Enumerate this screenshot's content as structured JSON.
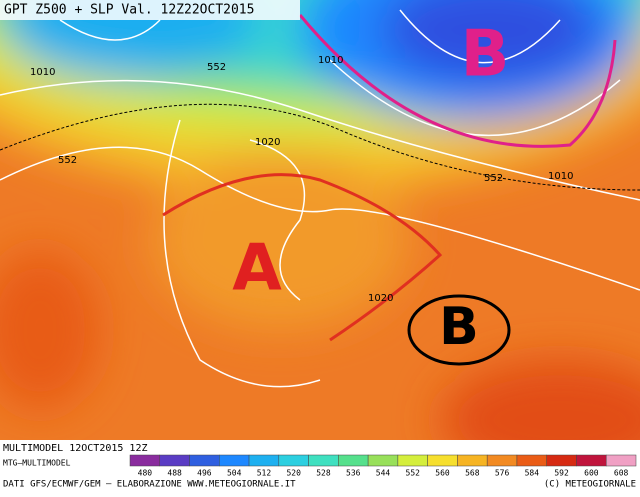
{
  "header": {
    "title": "GPT Z500 + SLP Val. 12Z22OCT2015"
  },
  "map": {
    "contour_labels": [
      "1010",
      "552",
      "1010",
      "552",
      "1020",
      "552",
      "1010",
      "1020"
    ],
    "systems": [
      "B",
      "A",
      "B"
    ]
  },
  "footer": {
    "run": "MULTIMODEL 12OCT2015 12Z",
    "model": "MTG—MULTIMODEL",
    "source": "DATI GFS/ECMWF/GEM — ELABORAZIONE WWW.METEOGIORNALE.IT",
    "copyright": "(C) METEOGIORNALE"
  },
  "legend": {
    "labels": [
      "480",
      "488",
      "496",
      "504",
      "512",
      "520",
      "528",
      "536",
      "544",
      "552",
      "560",
      "568",
      "576",
      "584",
      "592",
      "600",
      "608"
    ],
    "colors": [
      "#8a2c9e",
      "#5a3cc4",
      "#2f5fe0",
      "#1e88ff",
      "#1eb0f0",
      "#2ccfe0",
      "#3fe0c0",
      "#55e08c",
      "#98e05a",
      "#d4ee3c",
      "#f6df2e",
      "#f6b423",
      "#f28a22",
      "#ea5c16",
      "#d62a12",
      "#c0143c",
      "#f0a0c4"
    ]
  }
}
